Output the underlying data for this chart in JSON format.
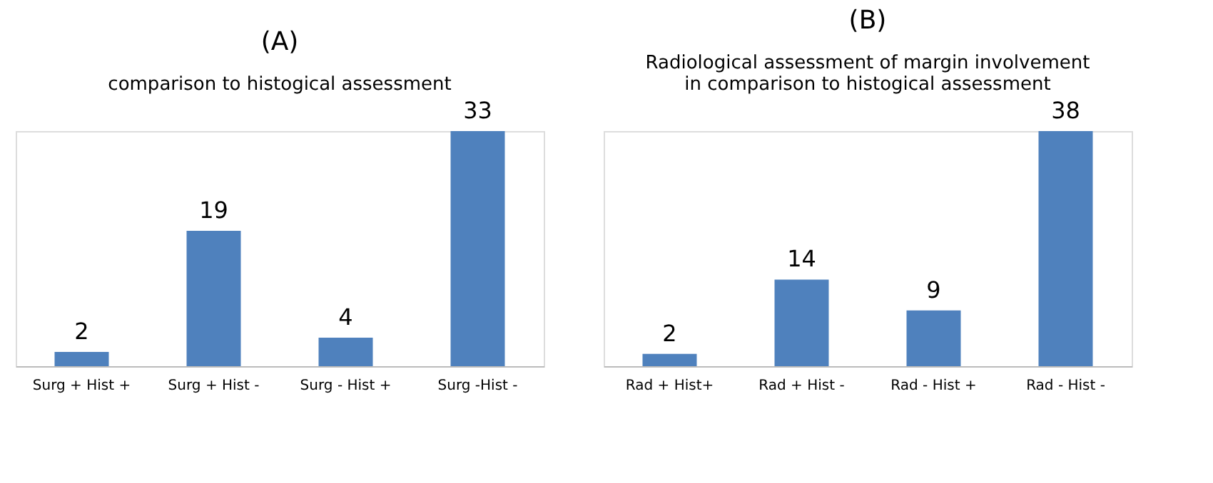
{
  "chart_data": [
    {
      "type": "bar",
      "title": "(A)",
      "subtitle": "comparison to histogical assessment",
      "categories": [
        "Surg + Hist +",
        "Surg + Hist -",
        "Surg - Hist +",
        "Surg -Hist -"
      ],
      "values": [
        2,
        19,
        4,
        33
      ],
      "color": "#4f81bd",
      "data_labels": true,
      "tick_labels": "x"
    },
    {
      "type": "bar",
      "title": "(B)",
      "subtitle": "Radiological assessment of margin involvement\nin comparison to histogical assessment",
      "categories": [
        "Rad + Hist+",
        "Rad + Hist -",
        "Rad - Hist +",
        "Rad - Hist -"
      ],
      "values": [
        2,
        14,
        9,
        38
      ],
      "color": "#4f81bd",
      "data_labels": true,
      "tick_labels": "x"
    }
  ]
}
